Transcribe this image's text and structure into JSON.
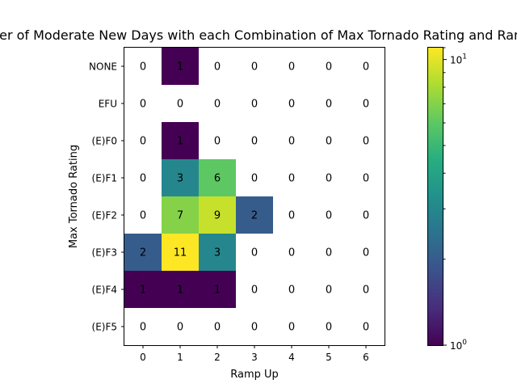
{
  "chart_data": {
    "type": "heatmap",
    "title": "Number of Moderate New Days with each Combination of Max Tornado Rating and Ramp Up",
    "xlabel": "Ramp Up",
    "ylabel": "Max Tornado Rating",
    "x_categories": [
      "0",
      "1",
      "2",
      "3",
      "4",
      "5",
      "6"
    ],
    "y_categories": [
      "NONE",
      "EFU",
      "(E)F0",
      "(E)F1",
      "(E)F2",
      "(E)F3",
      "(E)F4",
      "(E)F5"
    ],
    "values": [
      [
        0,
        1,
        0,
        0,
        0,
        0,
        0
      ],
      [
        0,
        0,
        0,
        0,
        0,
        0,
        0
      ],
      [
        0,
        1,
        0,
        0,
        0,
        0,
        0
      ],
      [
        0,
        3,
        6,
        0,
        0,
        0,
        0
      ],
      [
        0,
        7,
        9,
        2,
        0,
        0,
        0
      ],
      [
        2,
        11,
        3,
        0,
        0,
        0,
        0
      ],
      [
        1,
        1,
        1,
        0,
        0,
        0,
        0
      ],
      [
        0,
        0,
        0,
        0,
        0,
        0,
        0
      ]
    ],
    "color_scale": "log",
    "colormap": "viridis",
    "colorbar": {
      "min": 1,
      "max": 11,
      "tick_labels": [
        {
          "base": "10",
          "exp": "0",
          "value": 1
        },
        {
          "base": "10",
          "exp": "1",
          "value": 10
        }
      ]
    },
    "zero_color": "#ffffff",
    "grid": false
  }
}
